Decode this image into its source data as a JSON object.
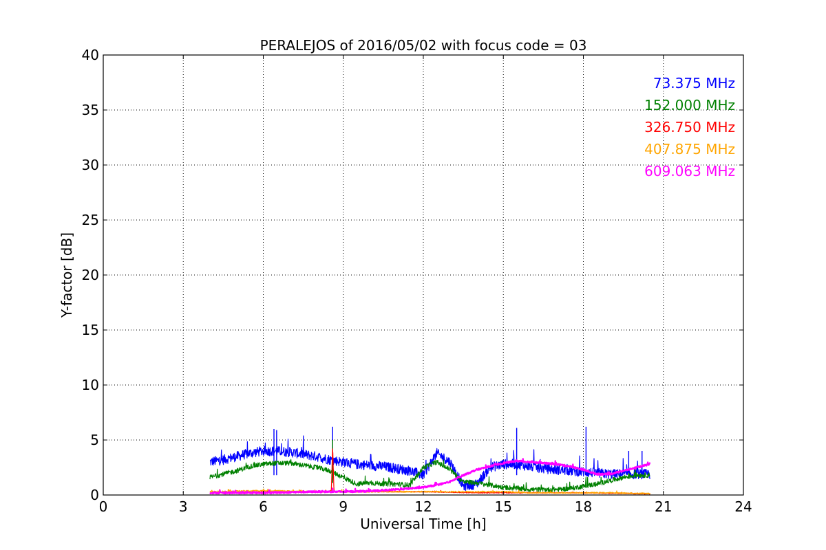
{
  "chart_data": {
    "type": "line",
    "title": "PERALEJOS of 2016/05/02 with focus code = 03",
    "xlabel": "Universal Time [h]",
    "ylabel": "Y-factor [dB]",
    "xlim": [
      0,
      24
    ],
    "ylim": [
      0,
      40
    ],
    "xticks": [
      0,
      3,
      6,
      9,
      12,
      15,
      18,
      21,
      24
    ],
    "yticks": [
      0,
      5,
      10,
      15,
      20,
      25,
      30,
      35,
      40
    ],
    "xtick_labels": [
      "0",
      "3",
      "6",
      "9",
      "12",
      "15",
      "18",
      "21",
      "24"
    ],
    "ytick_labels": [
      "0",
      "5",
      "10",
      "15",
      "20",
      "25",
      "30",
      "35",
      "40"
    ],
    "grid": true,
    "legend_position": "top-right",
    "series": [
      {
        "name": "73.375 MHz",
        "color": "#0000ff",
        "x": [
          4.0,
          4.5,
          5.0,
          5.5,
          6.0,
          6.5,
          7.0,
          7.5,
          8.0,
          8.5,
          9.0,
          9.5,
          10.0,
          10.5,
          11.0,
          11.5,
          12.0,
          12.5,
          13.0,
          13.5,
          14.0,
          14.5,
          15.0,
          15.5,
          16.0,
          16.5,
          17.0,
          17.5,
          18.0,
          18.5,
          19.0,
          19.5,
          20.0,
          20.5
        ],
        "y": [
          3.0,
          3.2,
          3.5,
          3.8,
          4.0,
          4.0,
          3.9,
          3.7,
          3.5,
          3.2,
          3.0,
          2.8,
          2.7,
          2.6,
          2.4,
          2.2,
          1.8,
          3.8,
          3.0,
          0.8,
          1.0,
          2.5,
          2.8,
          2.8,
          2.6,
          2.4,
          2.3,
          2.2,
          2.1,
          2.0,
          1.9,
          1.9,
          1.9,
          1.9
        ],
        "spikes": [
          [
            6.4,
            6.0
          ],
          [
            6.5,
            5.9
          ],
          [
            8.6,
            6.2
          ],
          [
            15.5,
            6.1
          ],
          [
            18.1,
            6.2
          ],
          [
            19.7,
            4.0
          ],
          [
            20.2,
            4.0
          ]
        ]
      },
      {
        "name": "152.000 MHz",
        "color": "#008000",
        "x": [
          4.0,
          4.5,
          5.0,
          5.5,
          6.0,
          6.5,
          7.0,
          7.5,
          8.0,
          8.5,
          9.0,
          9.5,
          10.0,
          10.5,
          11.0,
          11.5,
          12.0,
          12.5,
          13.0,
          13.5,
          14.0,
          14.5,
          15.0,
          15.5,
          16.0,
          16.5,
          17.0,
          17.5,
          18.0,
          18.5,
          19.0,
          19.5,
          20.0,
          20.5
        ],
        "y": [
          1.6,
          1.9,
          2.2,
          2.6,
          2.8,
          2.9,
          2.9,
          2.7,
          2.5,
          2.2,
          1.6,
          1.0,
          1.1,
          1.0,
          1.0,
          0.9,
          2.5,
          3.0,
          2.3,
          1.2,
          1.1,
          0.9,
          0.7,
          0.6,
          0.5,
          0.5,
          0.5,
          0.6,
          0.8,
          1.0,
          1.3,
          1.6,
          1.8,
          1.8
        ],
        "spikes": [
          [
            8.6,
            5.0
          ]
        ]
      },
      {
        "name": "326.750 MHz",
        "color": "#ff0000",
        "x": [
          4.0,
          6.0,
          8.0,
          8.55,
          8.6,
          8.65,
          10.0,
          12.0,
          14.0,
          16.0,
          18.0,
          20.5
        ],
        "y": [
          0.2,
          0.3,
          0.3,
          0.3,
          4.5,
          0.3,
          0.3,
          0.3,
          0.2,
          0.2,
          0.2,
          0.1
        ],
        "spikes": []
      },
      {
        "name": "407.875 MHz",
        "color": "#ffa500",
        "x": [
          4.0,
          5.0,
          6.0,
          7.0,
          8.0,
          9.0,
          10.0,
          11.0,
          12.0,
          13.0,
          14.0,
          15.0,
          16.0,
          17.0,
          18.0,
          19.0,
          20.0,
          20.5
        ],
        "y": [
          0.3,
          0.35,
          0.4,
          0.35,
          0.3,
          0.3,
          0.3,
          0.3,
          0.3,
          0.3,
          0.3,
          0.3,
          0.2,
          0.2,
          0.2,
          0.2,
          0.15,
          0.15
        ],
        "spikes": []
      },
      {
        "name": "609.063 MHz",
        "color": "#ff00ff",
        "x": [
          4.0,
          5.0,
          6.0,
          7.0,
          8.0,
          9.0,
          10.0,
          11.0,
          11.5,
          12.0,
          12.5,
          13.0,
          13.5,
          14.0,
          14.5,
          15.0,
          15.5,
          16.0,
          16.5,
          17.0,
          17.5,
          18.0,
          18.5,
          19.0,
          19.5,
          20.0,
          20.5
        ],
        "y": [
          0.2,
          0.2,
          0.2,
          0.25,
          0.3,
          0.3,
          0.35,
          0.5,
          0.6,
          0.7,
          0.9,
          1.2,
          1.8,
          2.3,
          2.6,
          2.9,
          3.1,
          3.0,
          2.9,
          2.8,
          2.6,
          2.3,
          1.9,
          1.9,
          2.2,
          2.5,
          2.8
        ],
        "spikes": []
      }
    ]
  }
}
